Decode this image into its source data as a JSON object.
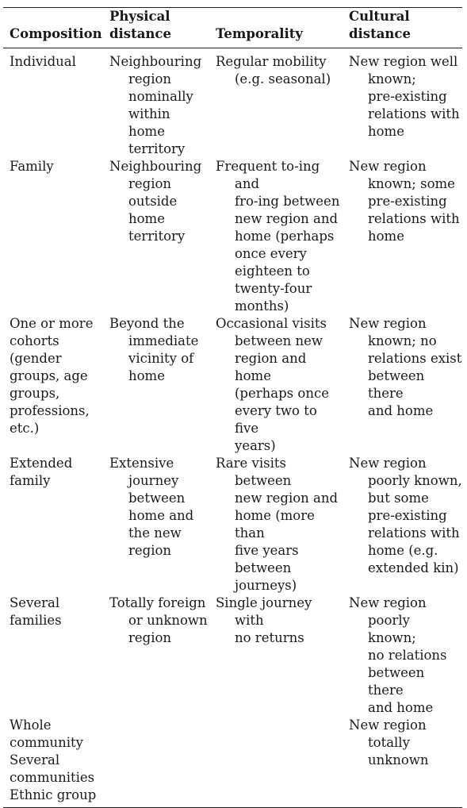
{
  "table": {
    "headers": {
      "composition": "Composition",
      "physical_distance": "Physical\ndistance",
      "temporality": "Temporality",
      "cultural_distance": "Cultural\ndistance"
    },
    "rows": [
      {
        "composition": "Individual",
        "physical_distance": "Neighbouring\nregion\nnominally\nwithin home\nterritory",
        "temporality": "Regular mobility\n(e.g. seasonal)",
        "cultural_distance": "New region well\nknown;\npre-existing\nrelations with\nhome"
      },
      {
        "composition": "Family",
        "physical_distance": "Neighbouring\nregion\noutside\nhome\nterritory",
        "temporality": "Frequent to-ing and\nfro-ing between\nnew region and\nhome (perhaps\nonce every\neighteen to\ntwenty-four\nmonths)",
        "cultural_distance": "New region\nknown; some\npre-existing\nrelations with\nhome"
      },
      {
        "composition": "One or more\ncohorts\n(gender\ngroups, age\ngroups,\nprofessions,\netc.)",
        "physical_distance": "Beyond the\nimmediate\nvicinity of\nhome",
        "temporality": "Occasional visits\nbetween new\nregion and home\n(perhaps once\nevery two to five\nyears)",
        "cultural_distance": "New region\nknown; no\nrelations exist\nbetween there\nand home"
      },
      {
        "composition": "Extended\nfamily",
        "physical_distance": "Extensive\njourney\nbetween\nhome and\nthe new\nregion",
        "temporality": "Rare visits between\nnew region and\nhome (more than\nfive years\nbetween\njourneys)",
        "cultural_distance": "New region\npoorly known,\nbut some\npre-existing\nrelations with\nhome (e.g.\nextended kin)"
      },
      {
        "composition": "Several\nfamilies",
        "physical_distance": "Totally foreign\nor unknown\nregion",
        "temporality": "Single journey with\nno returns",
        "cultural_distance": "New region\npoorly known;\nno relations\nbetween there\nand home"
      },
      {
        "composition": "Whole\ncommunity\nSeveral\ncommunities\nEthnic group",
        "physical_distance": "",
        "temporality": "",
        "cultural_distance": "New region\ntotally unknown"
      }
    ]
  }
}
